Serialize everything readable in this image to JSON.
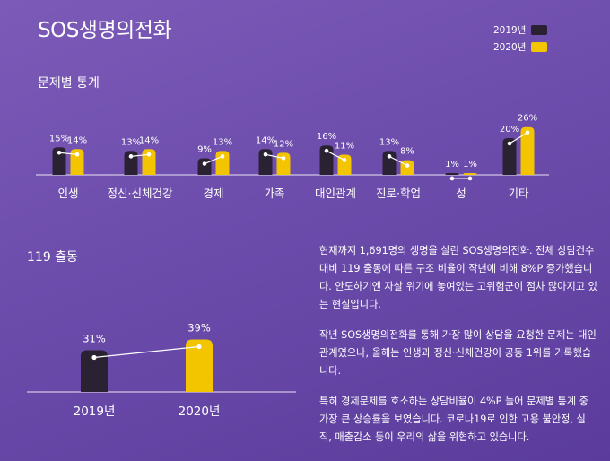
{
  "title": "SOS생명의전화",
  "legend": [
    {
      "label": "2019년",
      "color": "#2a2233"
    },
    {
      "label": "2020년",
      "color": "#f2c500"
    }
  ],
  "section1_title": "문제별 통계",
  "section2_title": "119 출동",
  "chart_data": [
    {
      "type": "bar",
      "categories": [
        "인생",
        "정신·신체건강",
        "경제",
        "가족",
        "대인관계",
        "진로·학업",
        "성",
        "기타"
      ],
      "series": [
        {
          "name": "2019년",
          "values": [
            15,
            13,
            9,
            14,
            16,
            13,
            1,
            20
          ],
          "color": "#2a2233"
        },
        {
          "name": "2020년",
          "values": [
            14,
            14,
            13,
            12,
            11,
            8,
            1,
            26
          ],
          "color": "#f2c500"
        }
      ],
      "value_labels": {
        "2019년": [
          "15%",
          "13%",
          "9%",
          "14%",
          "16%",
          "13%",
          "1%",
          "20%"
        ],
        "2020년": [
          "14%",
          "14%",
          "13%",
          "12%",
          "11%",
          "8%",
          "1%",
          "26%"
        ]
      },
      "unit": "%"
    },
    {
      "type": "bar",
      "categories": [
        "2019년",
        "2020년"
      ],
      "values": [
        31,
        39
      ],
      "value_labels": [
        "31%",
        "39%"
      ],
      "colors": [
        "#2a2233",
        "#f2c500"
      ],
      "unit": "%"
    }
  ],
  "paragraphs": [
    "현재까지 1,691명의 생명을 살린 SOS생명의전화. 전체 상담건수 대비 119 출동에 따른 구조 비율이 작년에 비해 8%P 증가했습니다. 안도하기엔 자살 위기에 놓여있는 고위험군이 점차 많아지고 있는 현실입니다.",
    "작년 SOS생명의전화를 통해 가장 많이 상담을 요청한 문제는 대인관계였으나, 올해는 인생과 정신·신체건강이 공동 1위를 기록했습니다.",
    "특히 경제문제를 호소하는 상담비율이 4%P 늘어 문제별 통계 중 가장 큰 상승률을 보였습니다. 코로나19로 인한 고용 불안정, 실직, 매출감소 등이 우리의 삶을 위협하고 있습니다."
  ]
}
